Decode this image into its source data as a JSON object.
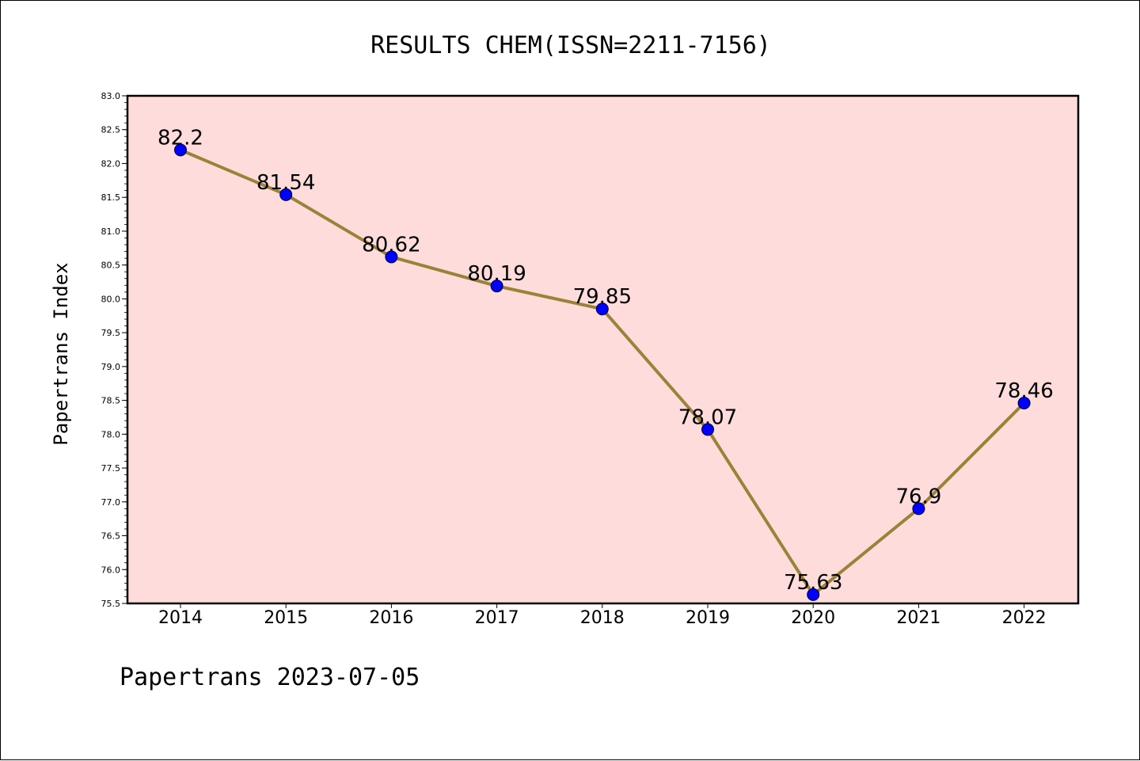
{
  "chart_data": {
    "type": "line",
    "title": "RESULTS CHEM(ISSN=2211-7156)",
    "xlabel": "",
    "ylabel": "Papertrans Index",
    "categories": [
      "2014",
      "2015",
      "2016",
      "2017",
      "2018",
      "2019",
      "2020",
      "2021",
      "2022"
    ],
    "values": [
      82.2,
      81.54,
      80.62,
      80.19,
      79.85,
      78.07,
      75.63,
      76.9,
      78.46
    ],
    "data_labels": [
      "82.2",
      "81.54",
      "80.62",
      "80.19",
      "79.85",
      "78.07",
      "75.63",
      "76.9",
      "78.46"
    ],
    "ylim": [
      75.5,
      83.0
    ],
    "yticks": [
      "75.5",
      "76.0",
      "76.5",
      "77.0",
      "77.5",
      "78.0",
      "78.5",
      "79.0",
      "79.5",
      "80.0",
      "80.5",
      "81.0",
      "81.5",
      "82.0",
      "82.5",
      "83.0"
    ],
    "grid": false,
    "colors": {
      "plot_background": "#fddcdb",
      "line": "#9b8238",
      "marker": "#0000ff"
    }
  },
  "footer": "Papertrans 2023-07-05"
}
